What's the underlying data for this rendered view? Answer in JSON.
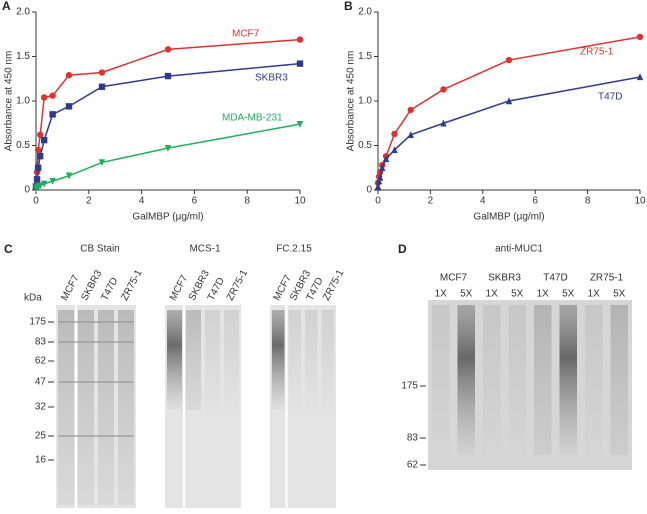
{
  "chart_data": [
    {
      "type": "line",
      "panel": "A",
      "ylabel": "Absorbance at 450 nm",
      "xlabel": "GalMBP (µg/ml)",
      "x": [
        0,
        0.04,
        0.08,
        0.16,
        0.31,
        0.63,
        1.25,
        2.5,
        5,
        10
      ],
      "xlim": [
        0,
        10
      ],
      "xticks": [
        0,
        2,
        4,
        6,
        8,
        10
      ],
      "ylim": [
        0,
        2
      ],
      "yticks": [
        0,
        0.5,
        {
          "value": 1,
          "label": "1.0"
        },
        1.5,
        {
          "value": 2,
          "label": "2.0"
        }
      ],
      "series": [
        {
          "name": "MCF7",
          "color": "#e0302f",
          "marker": "circle",
          "values": [
            0.05,
            0.2,
            0.45,
            0.62,
            1.04,
            1.06,
            1.29,
            1.32,
            1.58,
            1.69
          ]
        },
        {
          "name": "SKBR3",
          "color": "#2e3a8c",
          "marker": "square",
          "values": [
            0.04,
            0.12,
            0.25,
            0.38,
            0.56,
            0.85,
            0.94,
            1.16,
            1.28,
            1.42
          ]
        },
        {
          "name": "MDA-MB-231",
          "color": "#1fae5a",
          "marker": "triangle-down",
          "values": [
            0.02,
            0.03,
            0.04,
            0.05,
            0.07,
            0.1,
            0.16,
            0.31,
            0.47,
            0.74
          ]
        }
      ]
    },
    {
      "type": "line",
      "panel": "B",
      "ylabel": "Absorbance at 450 nm",
      "xlabel": "GalMBP (µg/ml)",
      "x": [
        0,
        0.04,
        0.08,
        0.16,
        0.31,
        0.63,
        1.25,
        2.5,
        5,
        10
      ],
      "xlim": [
        0,
        10
      ],
      "xticks": [
        0,
        2,
        4,
        6,
        8,
        10
      ],
      "ylim": [
        0,
        2
      ],
      "yticks": [
        0,
        0.5,
        {
          "value": 1,
          "label": "1.0"
        },
        1.5,
        {
          "value": 2,
          "label": "2.0"
        }
      ],
      "series": [
        {
          "name": "ZR75-1",
          "color": "#e0302f",
          "marker": "circle",
          "values": [
            0.08,
            0.15,
            0.2,
            0.28,
            0.38,
            0.63,
            0.9,
            1.13,
            1.46,
            1.72
          ]
        },
        {
          "name": "T47D",
          "color": "#2e3a8c",
          "marker": "triangle-up",
          "values": [
            0.04,
            0.1,
            0.14,
            0.25,
            0.35,
            0.45,
            0.62,
            0.75,
            1.0,
            1.27
          ]
        }
      ]
    }
  ],
  "blot_c": {
    "panel": "C",
    "kda": "kDa",
    "markers": [
      "175",
      "83",
      "62",
      "47",
      "32",
      "25",
      "16"
    ],
    "blots": [
      {
        "title": "CB Stain",
        "lanes": [
          "MCF7",
          "SKBR3",
          "T47D",
          "ZR75-1"
        ]
      },
      {
        "title": "MCS-1",
        "lanes": [
          "MCF7",
          "SKBR3",
          "T47D",
          "ZR75-1"
        ]
      },
      {
        "title": "FC.2.15",
        "lanes": [
          "MCF7",
          "SKBR3",
          "T47D",
          "ZR75-1"
        ]
      }
    ]
  },
  "blot_d": {
    "panel": "D",
    "title": "anti-MUC1",
    "markers": [
      "175",
      "83",
      "62"
    ],
    "groups": [
      {
        "name": "MCF7",
        "doses": [
          "1X",
          "5X"
        ]
      },
      {
        "name": "SKBR3",
        "doses": [
          "1X",
          "5X"
        ]
      },
      {
        "name": "T47D",
        "doses": [
          "1X",
          "5X"
        ]
      },
      {
        "name": "ZR75-1",
        "doses": [
          "1X",
          "5X"
        ]
      }
    ]
  }
}
